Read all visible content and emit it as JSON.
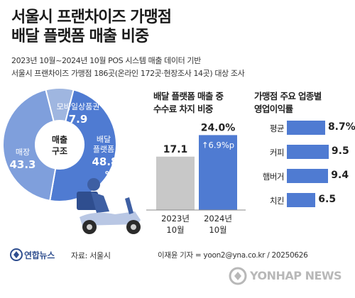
{
  "header": {
    "title_line1": "서울시 프랜차이즈 가맹점",
    "title_line2": "배달 플랫폼 매출 비중",
    "sub_line1": "2023년 10월~2024년 10월 POS 시스템 매출 데이터 기반",
    "sub_line2": "서울시 프랜차이즈 가맹점 186곳(온라인 172곳·현장조사 14곳) 대상 조사"
  },
  "chart_data": [
    {
      "type": "pie",
      "center_label": [
        "매출",
        "구조"
      ],
      "slices": [
        {
          "label": "모바일상품권",
          "value": 7.9,
          "color": "#9fb6e0"
        },
        {
          "label": "배달 플랫폼",
          "value": 48.8,
          "value_label": "48.8 %",
          "color": "#4f7bd2"
        },
        {
          "label": "매장",
          "value": 43.3,
          "color": "#7f9fdc"
        }
      ]
    },
    {
      "type": "bar",
      "title": [
        "배달 플랫폼 매출 중",
        "수수료 차지 비중"
      ],
      "categories": [
        "2023년 10월",
        "2024년 10월"
      ],
      "values": [
        17.1,
        24.0
      ],
      "value_labels": [
        "17.1",
        "24.0%"
      ],
      "annotation": "↑6.9%p",
      "colors": [
        "#c8c8c8",
        "#4f7bd2"
      ]
    },
    {
      "type": "bar",
      "orientation": "horizontal",
      "title": [
        "가맹점 주요 업종별",
        "영업이익률"
      ],
      "categories": [
        "평균",
        "커피",
        "햄버거",
        "치킨"
      ],
      "values": [
        8.7,
        9.5,
        9.4,
        6.5
      ],
      "value_labels": [
        "8.7%",
        "9.5",
        "9.4",
        "6.5"
      ],
      "color": "#4f7bd2"
    }
  ],
  "footer": {
    "logo_text": "연합뉴스",
    "source": "자료: 서울시",
    "credit": "이재윤 기자 = yoon2@yna.co.kr / 20250626",
    "watermark": "YONHAP NEWS"
  }
}
